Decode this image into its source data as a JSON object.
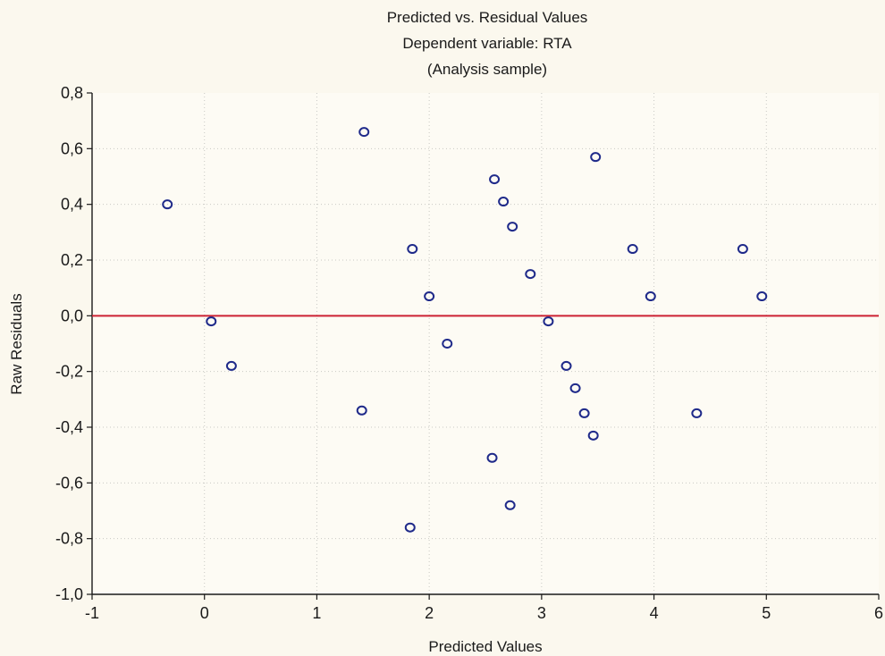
{
  "chart_data": {
    "type": "scatter",
    "title": "Predicted vs. Residual Values",
    "subtitle": "Dependent variable: RTA",
    "subtitle2": "(Analysis sample)",
    "xlabel": "Predicted Values",
    "ylabel": "Raw Residuals",
    "xlim": [
      -1,
      6
    ],
    "ylim": [
      -1.0,
      0.8
    ],
    "x_ticks": [
      -1,
      0,
      1,
      2,
      3,
      4,
      5,
      6
    ],
    "x_tick_labels": [
      "-1",
      "0",
      "1",
      "2",
      "3",
      "4",
      "5",
      "6"
    ],
    "y_ticks": [
      -1.0,
      -0.8,
      -0.6,
      -0.4,
      -0.2,
      0.0,
      0.2,
      0.4,
      0.6,
      0.8
    ],
    "y_tick_labels": [
      "-1,0",
      "-0,8",
      "-0,6",
      "-0,4",
      "-0,2",
      "0,0",
      "0,2",
      "0,4",
      "0,6",
      "0,8"
    ],
    "grid": true,
    "reference_line": {
      "y": 0.0,
      "color": "#cc2233"
    },
    "marker_color": "#1f2a8a",
    "points": [
      {
        "x": -0.33,
        "y": 0.4
      },
      {
        "x": 0.06,
        "y": -0.02
      },
      {
        "x": 0.24,
        "y": -0.18
      },
      {
        "x": 1.4,
        "y": -0.34
      },
      {
        "x": 1.42,
        "y": 0.66
      },
      {
        "x": 1.83,
        "y": -0.76
      },
      {
        "x": 1.85,
        "y": 0.24
      },
      {
        "x": 2.0,
        "y": 0.07
      },
      {
        "x": 2.16,
        "y": -0.1
      },
      {
        "x": 2.56,
        "y": -0.51
      },
      {
        "x": 2.58,
        "y": 0.49
      },
      {
        "x": 2.66,
        "y": 0.41
      },
      {
        "x": 2.72,
        "y": -0.68
      },
      {
        "x": 2.74,
        "y": 0.32
      },
      {
        "x": 2.9,
        "y": 0.15
      },
      {
        "x": 3.06,
        "y": -0.02
      },
      {
        "x": 3.22,
        "y": -0.18
      },
      {
        "x": 3.3,
        "y": -0.26
      },
      {
        "x": 3.38,
        "y": -0.35
      },
      {
        "x": 3.46,
        "y": -0.43
      },
      {
        "x": 3.48,
        "y": 0.57
      },
      {
        "x": 3.81,
        "y": 0.24
      },
      {
        "x": 3.97,
        "y": 0.07
      },
      {
        "x": 4.38,
        "y": -0.35
      },
      {
        "x": 4.79,
        "y": 0.24
      },
      {
        "x": 4.96,
        "y": 0.07
      }
    ]
  }
}
